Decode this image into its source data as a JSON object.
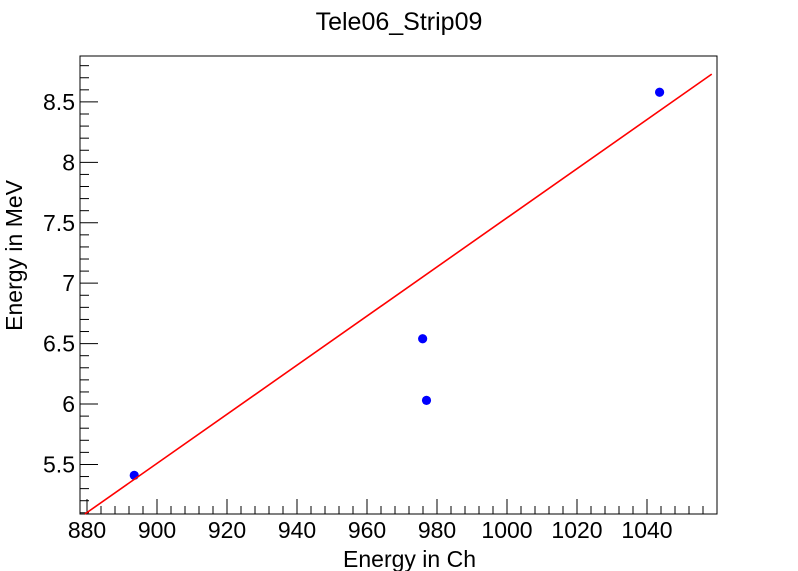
{
  "chart_data": {
    "type": "scatter",
    "title": "Tele06_Strip09",
    "xlabel": "Energy in Ch",
    "ylabel": "Energy in MeV",
    "xlim": [
      878,
      1060
    ],
    "ylim": [
      5.09,
      8.88
    ],
    "x_ticks": [
      880,
      900,
      920,
      940,
      960,
      980,
      1000,
      1020,
      1040
    ],
    "x_tick_labels": [
      "880",
      "900",
      "920",
      "940",
      "960",
      "980",
      "1000",
      "1020",
      "1040"
    ],
    "y_ticks": [
      5.5,
      6,
      6.5,
      7,
      7.5,
      8,
      8.5
    ],
    "y_tick_labels": [
      "5.5",
      "6",
      "6.5",
      "7",
      "7.5",
      "8",
      "8.5"
    ],
    "grid": false,
    "series": [
      {
        "kind": "points",
        "color": "#0000ff",
        "points": [
          {
            "x": 893.5,
            "y": 5.41
          },
          {
            "x": 975.9,
            "y": 6.54
          },
          {
            "x": 977.0,
            "y": 6.03
          },
          {
            "x": 1043.6,
            "y": 8.58
          }
        ]
      },
      {
        "kind": "fit-line",
        "color": "#ff0000",
        "points": [
          {
            "x": 879.4,
            "y": 5.09
          },
          {
            "x": 1058.5,
            "y": 8.73
          }
        ]
      }
    ]
  }
}
